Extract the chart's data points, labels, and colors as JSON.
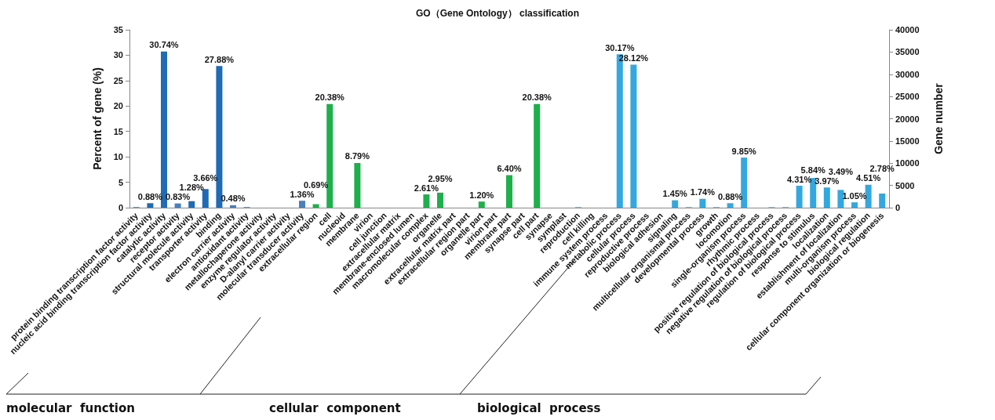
{
  "chart_data": {
    "type": "bar",
    "title": "GO（Gene Ontology） classification",
    "ylabel": "Percent of gene (%)",
    "y2label": "Gene number",
    "categories": [
      "protein binding transcription factor activity",
      "nucleic acid binding transcription factor activity",
      "catalytic activity",
      "receptor activity",
      "structural molecule activity",
      "transporter activity",
      "binding",
      "electron carrier activity",
      "antioxidant activity",
      "metallochaperone activity",
      "enzyme regulator activity",
      "D-alanyl carrier activity",
      "molecular transducer activity",
      "extracellular region",
      "cell",
      "nucleoid",
      "membrane",
      "virion",
      "cell junction",
      "extracellular matrix",
      "membrane-enclosed lumen",
      "macromolecular complex",
      "organelle",
      "extracellular matrix part",
      "extracellular region part",
      "organelle part",
      "virion part",
      "membrane part",
      "synapse part",
      "cell part",
      "synapse",
      "symplast",
      "reproduction",
      "cell killing",
      "immune system process",
      "metabolic process",
      "cellular process",
      "reproductive process",
      "biological adhesion",
      "signaling",
      "multicellular organismal process",
      "developmental process",
      "growth",
      "locomotion",
      "single-organism process",
      "rhythmic process",
      "positive regulation of biological process",
      "negative regulation of biological process",
      "regulation of biological process",
      "response to stimulus",
      "localization",
      "establishment of localization",
      "multi-organism process",
      "biological regulation",
      "cellular component organization or biogenesis"
    ],
    "values": [
      0.1,
      0.88,
      30.74,
      0.83,
      1.28,
      3.66,
      27.88,
      0.48,
      0.1,
      0,
      0,
      0,
      1.36,
      0.69,
      20.38,
      0,
      8.79,
      0,
      0,
      0,
      0,
      2.61,
      2.95,
      0,
      0,
      1.2,
      0,
      6.4,
      0,
      20.38,
      0,
      0,
      0.1,
      0,
      0,
      30.17,
      28.12,
      0,
      0,
      1.45,
      0.1,
      1.74,
      0.1,
      0.88,
      9.85,
      0,
      0.1,
      0.1,
      4.31,
      5.84,
      3.97,
      3.49,
      1.05,
      4.51,
      2.78
    ],
    "value_labels": [
      null,
      "0.88%",
      "30.74%",
      "0.83%",
      "1.28%",
      "3.66%",
      "27.88%",
      "0.48%",
      null,
      null,
      null,
      null,
      "1.36%",
      "0.69%",
      "20.38%",
      null,
      "8.79%",
      null,
      null,
      null,
      null,
      "2.61%",
      "2.95%",
      null,
      null,
      "1.20%",
      null,
      "6.40%",
      null,
      "20.38%",
      null,
      null,
      null,
      null,
      null,
      "30.17%",
      "28.12%",
      null,
      null,
      "1.45%",
      null,
      "1.74%",
      null,
      "0.88%",
      "9.85%",
      null,
      null,
      null,
      "4.31%",
      "5.84%",
      "3.97%",
      "3.49%",
      "1.05%",
      "4.51%",
      "2.78%"
    ],
    "colors": [
      "#1f6bb5",
      "#1f6bb5",
      "#1f6bb5",
      "#4a7fc0",
      "#1f6bb5",
      "#1f6bb5",
      "#1f6bb5",
      "#4a7fc0",
      "#1f6bb5",
      "#1f6bb5",
      "#1f6bb5",
      "#1f6bb5",
      "#4a7fc0",
      "#1db04b",
      "#1db04b",
      "#1db04b",
      "#1db04b",
      "#1db04b",
      "#1db04b",
      "#1db04b",
      "#1db04b",
      "#1db04b",
      "#1db04b",
      "#1db04b",
      "#1db04b",
      "#1db04b",
      "#1db04b",
      "#1db04b",
      "#1db04b",
      "#1db04b",
      "#1db04b",
      "#1db04b",
      "#33a8e0",
      "#33a8e0",
      "#33a8e0",
      "#33a8e0",
      "#33a8e0",
      "#33a8e0",
      "#33a8e0",
      "#33a8e0",
      "#33a8e0",
      "#33a8e0",
      "#33a8e0",
      "#33a8e0",
      "#33a8e0",
      "#33a8e0",
      "#33a8e0",
      "#33a8e0",
      "#33a8e0",
      "#33a8e0",
      "#33a8e0",
      "#33a8e0",
      "#33a8e0",
      "#33a8e0",
      "#33a8e0"
    ],
    "ylim": [
      0,
      35
    ],
    "yticks": [
      0,
      5,
      10,
      15,
      20,
      25,
      30,
      35
    ],
    "y2lim": [
      0,
      40000
    ],
    "y2ticks": [
      0,
      5000,
      10000,
      15000,
      20000,
      25000,
      30000,
      35000,
      40000
    ],
    "grid": false,
    "annotations": [
      "molecular  function",
      "cellular  component",
      "biological  process"
    ]
  }
}
